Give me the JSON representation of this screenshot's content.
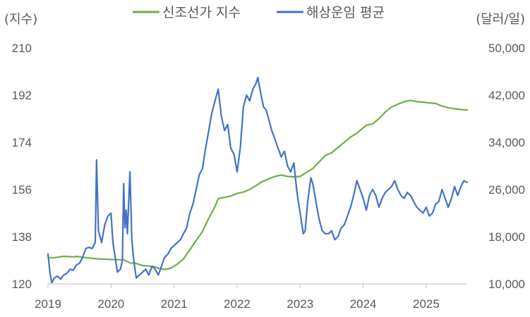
{
  "chart_data": {
    "type": "line",
    "left_axis_unit": "(지수)",
    "right_axis_unit": "(달러/일)",
    "x_ticks": [
      "2019",
      "2020",
      "2021",
      "2022",
      "2023",
      "2024",
      "2025"
    ],
    "xlim": [
      2019.0,
      2025.65
    ],
    "y_left": {
      "ticks": [
        "120",
        "138",
        "156",
        "174",
        "192",
        "210"
      ],
      "ylim": [
        120,
        210
      ]
    },
    "y_right": {
      "ticks": [
        "10,000",
        "18,000",
        "26,000",
        "34,000",
        "42,000",
        "50,000"
      ],
      "ylim": [
        10000,
        50000
      ]
    },
    "grid": false,
    "legend_position": "top",
    "series": [
      {
        "name": "신조선가 지수",
        "axis": "left",
        "color": "#70ad47",
        "points": [
          [
            2019.0,
            130.0
          ],
          [
            2019.1,
            130.0
          ],
          [
            2019.25,
            130.5
          ],
          [
            2019.4,
            130.3
          ],
          [
            2019.45,
            130.5
          ],
          [
            2019.6,
            130.0
          ],
          [
            2019.8,
            129.5
          ],
          [
            2020.0,
            129.3
          ],
          [
            2020.2,
            129.2
          ],
          [
            2020.3,
            128.0
          ],
          [
            2020.4,
            127.8
          ],
          [
            2020.5,
            127.0
          ],
          [
            2020.6,
            126.8
          ],
          [
            2020.7,
            126.5
          ],
          [
            2020.75,
            126.0
          ],
          [
            2020.85,
            125.5
          ],
          [
            2020.95,
            126.0
          ],
          [
            2021.05,
            127.5
          ],
          [
            2021.15,
            129.5
          ],
          [
            2021.25,
            133.0
          ],
          [
            2021.35,
            136.5
          ],
          [
            2021.45,
            140.0
          ],
          [
            2021.55,
            145.0
          ],
          [
            2021.65,
            149.5
          ],
          [
            2021.7,
            152.5
          ],
          [
            2021.8,
            153.0
          ],
          [
            2021.9,
            153.5
          ],
          [
            2022.0,
            154.5
          ],
          [
            2022.1,
            155.0
          ],
          [
            2022.2,
            156.0
          ],
          [
            2022.3,
            157.5
          ],
          [
            2022.4,
            159.0
          ],
          [
            2022.5,
            160.0
          ],
          [
            2022.6,
            161.0
          ],
          [
            2022.7,
            161.5
          ],
          [
            2022.8,
            161.0
          ],
          [
            2022.9,
            160.8
          ],
          [
            2023.0,
            161.0
          ],
          [
            2023.1,
            162.5
          ],
          [
            2023.2,
            164.0
          ],
          [
            2023.3,
            166.5
          ],
          [
            2023.4,
            169.0
          ],
          [
            2023.5,
            170.0
          ],
          [
            2023.6,
            172.0
          ],
          [
            2023.7,
            174.0
          ],
          [
            2023.8,
            176.0
          ],
          [
            2023.9,
            177.5
          ],
          [
            2024.0,
            179.5
          ],
          [
            2024.05,
            180.5
          ],
          [
            2024.15,
            181.0
          ],
          [
            2024.25,
            183.0
          ],
          [
            2024.35,
            185.5
          ],
          [
            2024.45,
            187.5
          ],
          [
            2024.55,
            188.5
          ],
          [
            2024.65,
            189.5
          ],
          [
            2024.75,
            190.0
          ],
          [
            2024.85,
            189.5
          ],
          [
            2024.95,
            189.3
          ],
          [
            2025.05,
            189.0
          ],
          [
            2025.15,
            188.8
          ],
          [
            2025.25,
            187.8
          ],
          [
            2025.35,
            187.2
          ],
          [
            2025.45,
            186.8
          ],
          [
            2025.55,
            186.5
          ],
          [
            2025.65,
            186.3
          ]
        ]
      },
      {
        "name": "해상운임 평균",
        "axis": "right",
        "color": "#4472c4",
        "points": [
          [
            2019.0,
            15100
          ],
          [
            2019.03,
            12000
          ],
          [
            2019.06,
            10200
          ],
          [
            2019.1,
            11000
          ],
          [
            2019.15,
            11300
          ],
          [
            2019.2,
            10800
          ],
          [
            2019.25,
            11500
          ],
          [
            2019.3,
            11800
          ],
          [
            2019.35,
            12500
          ],
          [
            2019.4,
            12300
          ],
          [
            2019.45,
            13200
          ],
          [
            2019.5,
            13500
          ],
          [
            2019.55,
            14500
          ],
          [
            2019.6,
            16000
          ],
          [
            2019.65,
            16200
          ],
          [
            2019.7,
            16000
          ],
          [
            2019.75,
            17000
          ],
          [
            2019.77,
            31000
          ],
          [
            2019.8,
            19000
          ],
          [
            2019.85,
            17000
          ],
          [
            2019.9,
            20000
          ],
          [
            2019.95,
            21500
          ],
          [
            2020.0,
            22000
          ],
          [
            2020.03,
            17000
          ],
          [
            2020.06,
            15000
          ],
          [
            2020.1,
            12000
          ],
          [
            2020.15,
            12500
          ],
          [
            2020.18,
            14000
          ],
          [
            2020.2,
            27000
          ],
          [
            2020.22,
            19500
          ],
          [
            2020.24,
            22500
          ],
          [
            2020.26,
            18500
          ],
          [
            2020.3,
            29000
          ],
          [
            2020.33,
            17500
          ],
          [
            2020.36,
            14000
          ],
          [
            2020.4,
            11000
          ],
          [
            2020.45,
            11500
          ],
          [
            2020.5,
            12000
          ],
          [
            2020.55,
            12500
          ],
          [
            2020.6,
            11500
          ],
          [
            2020.65,
            13000
          ],
          [
            2020.7,
            12500
          ],
          [
            2020.75,
            11500
          ],
          [
            2020.8,
            13000
          ],
          [
            2020.85,
            14500
          ],
          [
            2020.9,
            15000
          ],
          [
            2020.95,
            16000
          ],
          [
            2021.0,
            16500
          ],
          [
            2021.05,
            17000
          ],
          [
            2021.1,
            17500
          ],
          [
            2021.15,
            18500
          ],
          [
            2021.2,
            19500
          ],
          [
            2021.25,
            22000
          ],
          [
            2021.3,
            23500
          ],
          [
            2021.35,
            26000
          ],
          [
            2021.4,
            28500
          ],
          [
            2021.45,
            29500
          ],
          [
            2021.5,
            33000
          ],
          [
            2021.55,
            36000
          ],
          [
            2021.6,
            39000
          ],
          [
            2021.65,
            41000
          ],
          [
            2021.7,
            43000
          ],
          [
            2021.75,
            38500
          ],
          [
            2021.8,
            36000
          ],
          [
            2021.85,
            37000
          ],
          [
            2021.9,
            33000
          ],
          [
            2021.95,
            32000
          ],
          [
            2022.0,
            29000
          ],
          [
            2022.05,
            33000
          ],
          [
            2022.1,
            40000
          ],
          [
            2022.15,
            42000
          ],
          [
            2022.2,
            41000
          ],
          [
            2022.25,
            43000
          ],
          [
            2022.3,
            44000
          ],
          [
            2022.33,
            45000
          ],
          [
            2022.38,
            42000
          ],
          [
            2022.42,
            40000
          ],
          [
            2022.46,
            39500
          ],
          [
            2022.5,
            38000
          ],
          [
            2022.55,
            36000
          ],
          [
            2022.6,
            34500
          ],
          [
            2022.65,
            33000
          ],
          [
            2022.7,
            31500
          ],
          [
            2022.75,
            32500
          ],
          [
            2022.8,
            30000
          ],
          [
            2022.85,
            29000
          ],
          [
            2022.9,
            30500
          ],
          [
            2022.95,
            25500
          ],
          [
            2023.0,
            22000
          ],
          [
            2023.05,
            18500
          ],
          [
            2023.08,
            19000
          ],
          [
            2023.12,
            24000
          ],
          [
            2023.17,
            28000
          ],
          [
            2023.2,
            27000
          ],
          [
            2023.25,
            24000
          ],
          [
            2023.3,
            21000
          ],
          [
            2023.35,
            19000
          ],
          [
            2023.4,
            18500
          ],
          [
            2023.45,
            18500
          ],
          [
            2023.5,
            19000
          ],
          [
            2023.55,
            17500
          ],
          [
            2023.6,
            18000
          ],
          [
            2023.65,
            19500
          ],
          [
            2023.7,
            20000
          ],
          [
            2023.75,
            21500
          ],
          [
            2023.8,
            23000
          ],
          [
            2023.85,
            25000
          ],
          [
            2023.9,
            27500
          ],
          [
            2023.95,
            26000
          ],
          [
            2024.0,
            24500
          ],
          [
            2024.05,
            22500
          ],
          [
            2024.1,
            25000
          ],
          [
            2024.15,
            26000
          ],
          [
            2024.2,
            25000
          ],
          [
            2024.25,
            23000
          ],
          [
            2024.3,
            24500
          ],
          [
            2024.35,
            25500
          ],
          [
            2024.4,
            26000
          ],
          [
            2024.45,
            26500
          ],
          [
            2024.5,
            27500
          ],
          [
            2024.55,
            26000
          ],
          [
            2024.6,
            25000
          ],
          [
            2024.65,
            24500
          ],
          [
            2024.7,
            25500
          ],
          [
            2024.75,
            25000
          ],
          [
            2024.8,
            24000
          ],
          [
            2024.85,
            23000
          ],
          [
            2024.9,
            22500
          ],
          [
            2024.95,
            22000
          ],
          [
            2025.0,
            23000
          ],
          [
            2025.05,
            21500
          ],
          [
            2025.1,
            22000
          ],
          [
            2025.15,
            23500
          ],
          [
            2025.2,
            24000
          ],
          [
            2025.25,
            26000
          ],
          [
            2025.3,
            24500
          ],
          [
            2025.35,
            23000
          ],
          [
            2025.4,
            24500
          ],
          [
            2025.45,
            26500
          ],
          [
            2025.5,
            25000
          ],
          [
            2025.55,
            26500
          ],
          [
            2025.6,
            27500
          ],
          [
            2025.65,
            27200
          ]
        ]
      }
    ]
  }
}
